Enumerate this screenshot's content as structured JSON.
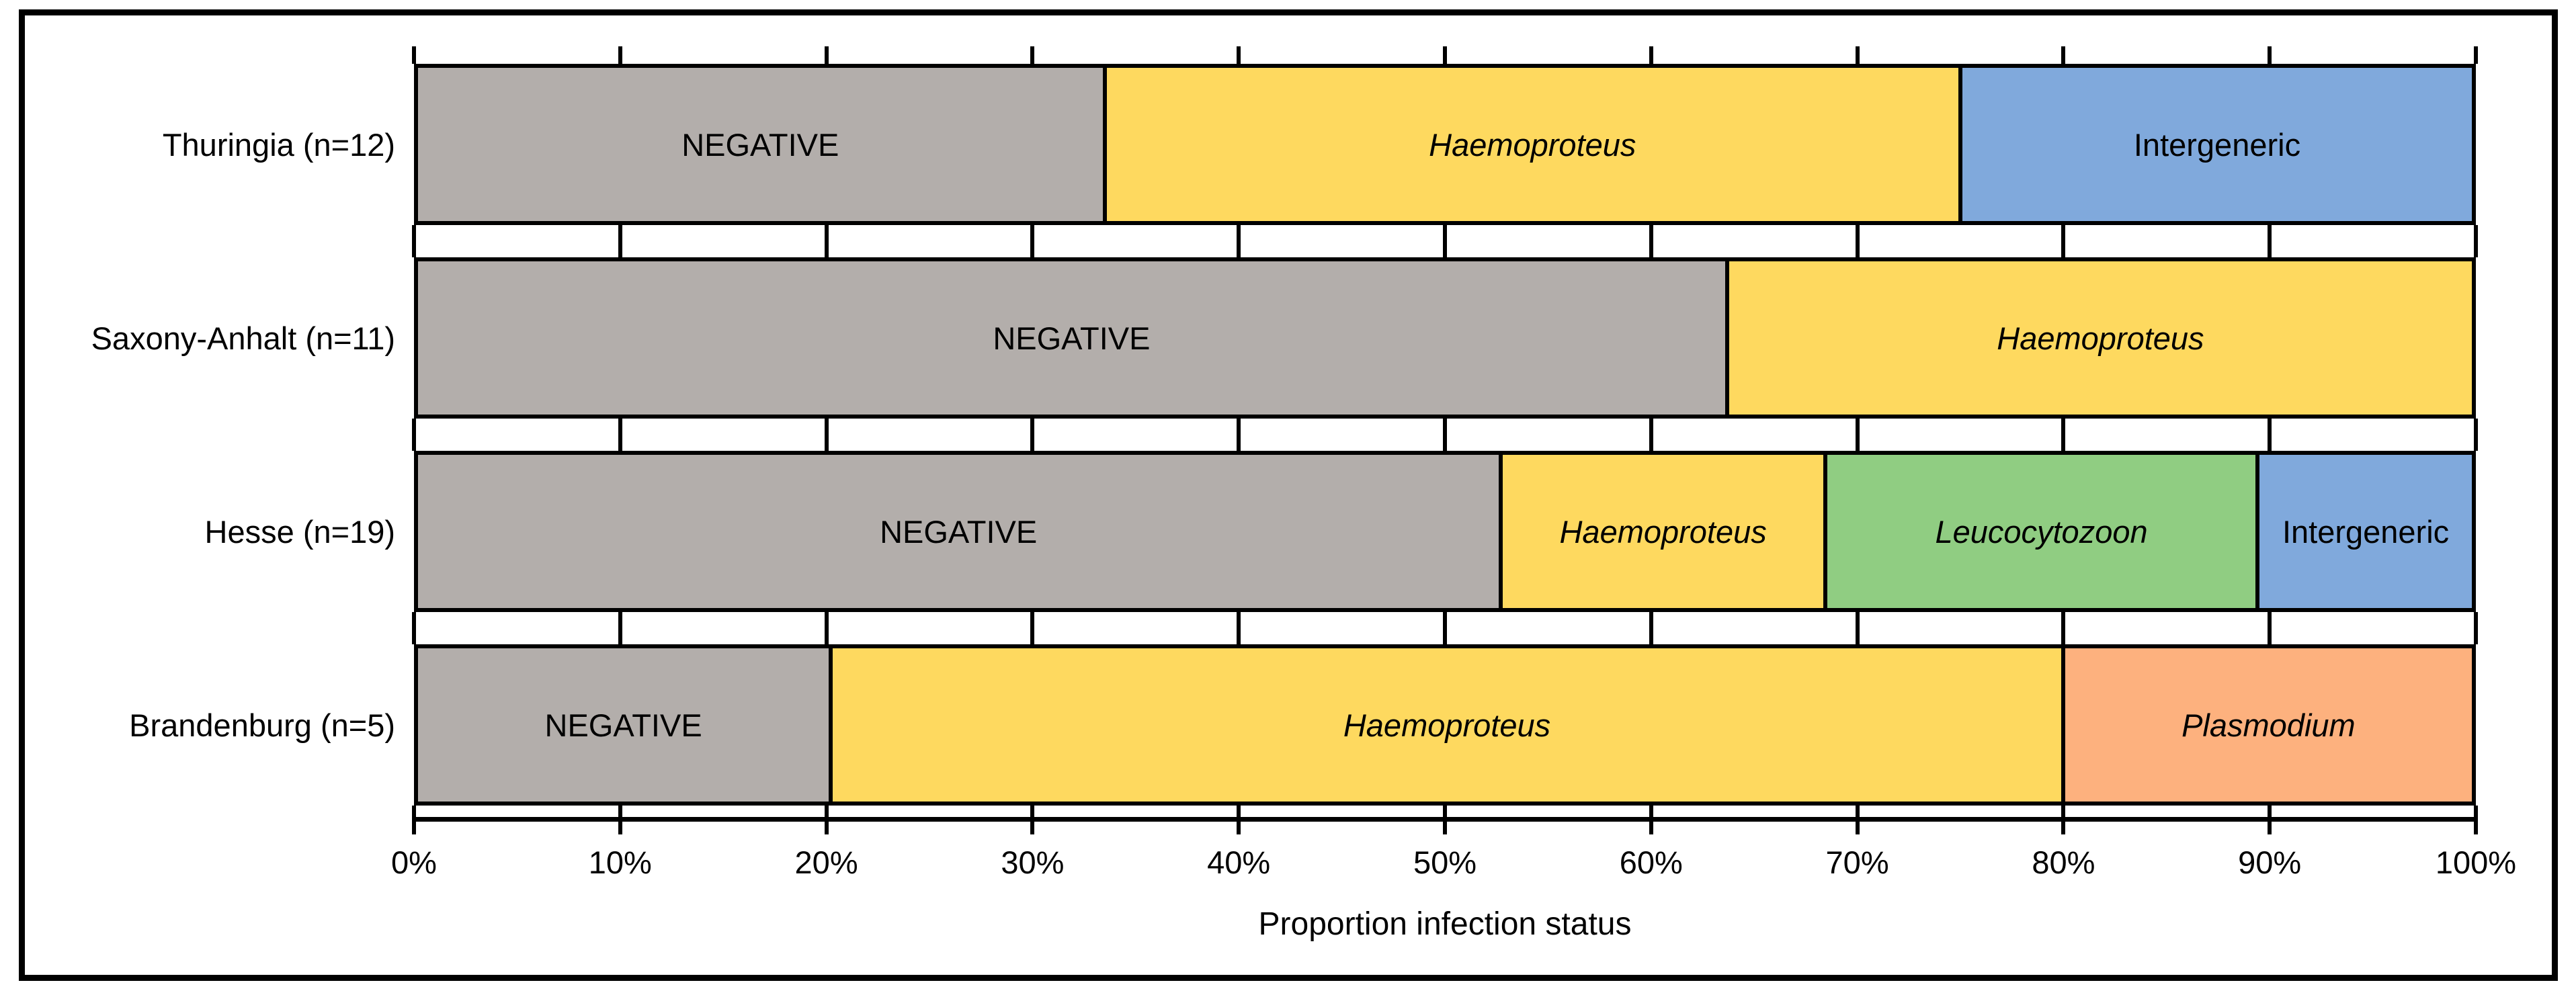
{
  "figure": {
    "background": "#ffffff",
    "frame_color": "#000000"
  },
  "chart_data": {
    "type": "bar",
    "orientation": "horizontal",
    "stacked": true,
    "title": "",
    "xlabel": "Proportion infection status",
    "ylabel": "",
    "xlim": [
      0,
      100
    ],
    "x_tick_labels": [
      "0%",
      "10%",
      "20%",
      "30%",
      "40%",
      "50%",
      "60%",
      "70%",
      "80%",
      "90%",
      "100%"
    ],
    "grid": false,
    "legend_position": "none",
    "statuses": [
      {
        "name": "NEGATIVE",
        "color": "#b3aeab",
        "italic": false
      },
      {
        "name": "Haemoproteus",
        "color": "#fed95f",
        "italic": true
      },
      {
        "name": "Leucocytozoon",
        "color": "#90cd82",
        "italic": true
      },
      {
        "name": "Intergeneric",
        "color": "#80a9dc",
        "italic": false
      },
      {
        "name": "Plasmodium",
        "color": "#fdb17e",
        "italic": true
      }
    ],
    "categories": [
      "Thuringia (n=12)",
      "Saxony-Anhalt (n=11)",
      "Hesse (n=19)",
      "Brandenburg (n=5)"
    ],
    "rows": [
      {
        "label": "Thuringia (n=12)",
        "segments": [
          {
            "status": "NEGATIVE",
            "percent": 33.33
          },
          {
            "status": "Haemoproteus",
            "percent": 41.67
          },
          {
            "status": "Intergeneric",
            "percent": 25.0
          }
        ]
      },
      {
        "label": "Saxony-Anhalt (n=11)",
        "segments": [
          {
            "status": "NEGATIVE",
            "percent": 63.64
          },
          {
            "status": "Haemoproteus",
            "percent": 36.36
          }
        ]
      },
      {
        "label": "Hesse (n=19)",
        "segments": [
          {
            "status": "NEGATIVE",
            "percent": 52.63
          },
          {
            "status": "Haemoproteus",
            "percent": 15.79
          },
          {
            "status": "Leucocytozoon",
            "percent": 21.05
          },
          {
            "status": "Intergeneric",
            "percent": 10.53
          }
        ]
      },
      {
        "label": "Brandenburg (n=5)",
        "segments": [
          {
            "status": "NEGATIVE",
            "percent": 20.0
          },
          {
            "status": "Haemoproteus",
            "percent": 60.0
          },
          {
            "status": "Plasmodium",
            "percent": 20.0
          }
        ]
      }
    ]
  }
}
